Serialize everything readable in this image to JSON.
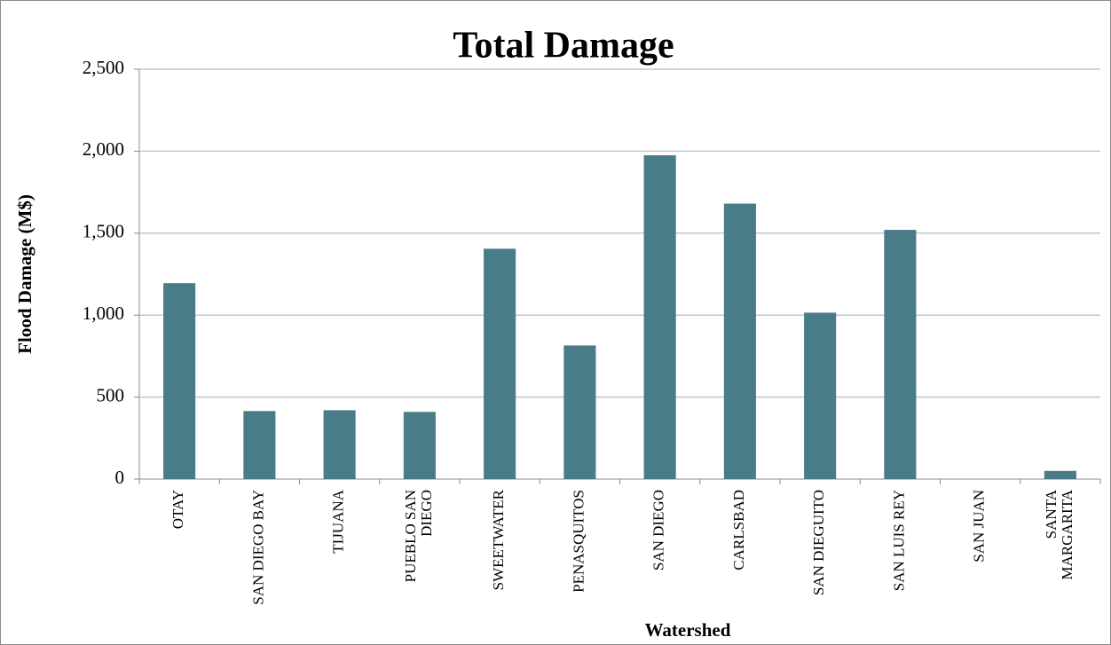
{
  "chart_data": {
    "type": "bar",
    "title": "Total Damage",
    "x_label": "Watershed",
    "y_label": "Flood Damage (M$)",
    "categories": [
      "OTAY",
      "SAN DIEGO BAY",
      "TIJUANA",
      "PUEBLO SAN DIEGO",
      "SWEETWATER",
      "PENASQUITOS",
      "SAN DIEGO",
      "CARLSBAD",
      "SAN DIEGUITO",
      "SAN LUIS REY",
      "SAN JUAN",
      "SANTA MARGARITA"
    ],
    "values": [
      1195,
      415,
      420,
      410,
      1405,
      815,
      1975,
      1680,
      1015,
      1520,
      0,
      50
    ],
    "color": "#4a7c87",
    "ylim": [
      0,
      2500
    ],
    "yticks": [
      0,
      500,
      {
        "value": 1000,
        "label": "1,000"
      },
      {
        "value": 1500,
        "label": "1,500"
      },
      {
        "value": 2000,
        "label": "2,000"
      },
      {
        "value": 2500,
        "label": "2,500"
      }
    ],
    "grid": true
  }
}
